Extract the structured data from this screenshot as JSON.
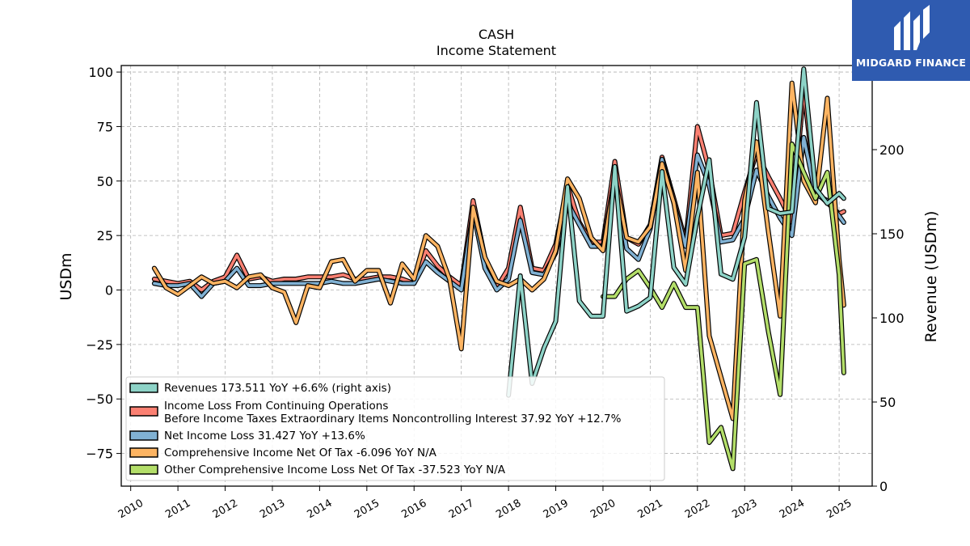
{
  "brand": {
    "name": "MIDGARD FINANCE",
    "color": "#2f5bb0"
  },
  "chart_data": {
    "type": "line",
    "title": "CASH",
    "subtitle": "Income Statement",
    "ylabel": "USDm",
    "ylabel_right": "Revenue (USDm)",
    "ylim": [
      -90,
      103
    ],
    "ylim_right": [
      0,
      250
    ],
    "xlim": [
      2009.8,
      2025.7
    ],
    "yticks": [
      -75,
      -50,
      -25,
      0,
      25,
      50,
      75,
      100
    ],
    "yticks_right": [
      0,
      50,
      100,
      150,
      200,
      250
    ],
    "xticks": [
      2010,
      2011,
      2012,
      2013,
      2014,
      2015,
      2016,
      2017,
      2018,
      2019,
      2020,
      2021,
      2022,
      2023,
      2024,
      2025
    ],
    "grid": true,
    "legend_position": "lower-left",
    "series": [
      {
        "name": "Revenues  173.511 YoY +6.6% (right axis)",
        "color": "#8dd3c7",
        "axis": "right",
        "x": [
          2018.0,
          2018.25,
          2018.5,
          2018.75,
          2019.0,
          2019.25,
          2019.5,
          2019.75,
          2020.0,
          2020.25,
          2020.5,
          2020.75,
          2021.0,
          2021.25,
          2021.5,
          2021.75,
          2022.0,
          2022.25,
          2022.5,
          2022.75,
          2023.0,
          2023.25,
          2023.5,
          2023.75,
          2024.0,
          2024.25,
          2024.5,
          2024.75,
          2025.0,
          2025.1
        ],
        "y": [
          54,
          125,
          61,
          82,
          98,
          178,
          110,
          101,
          101,
          190,
          104,
          107,
          112,
          187,
          130,
          120,
          160,
          194,
          126,
          123,
          148,
          228,
          165,
          162,
          163,
          248,
          177,
          168,
          174,
          171
        ]
      },
      {
        "name": "Income Loss From Continuing Operations\nBefore Income Taxes Extraordinary Items Noncontrolling Interest  37.92 YoY +12.7%",
        "color": "#fb8072",
        "axis": "left",
        "x": [
          2010.5,
          2010.75,
          2011.0,
          2011.25,
          2011.5,
          2011.75,
          2012.0,
          2012.25,
          2012.5,
          2012.75,
          2013.0,
          2013.25,
          2013.5,
          2013.75,
          2014.0,
          2014.25,
          2014.5,
          2014.75,
          2015.0,
          2015.25,
          2015.5,
          2015.75,
          2016.0,
          2016.25,
          2016.5,
          2016.75,
          2017.0,
          2017.25,
          2017.5,
          2017.75,
          2018.0,
          2018.25,
          2018.5,
          2018.75,
          2019.0,
          2019.25,
          2019.5,
          2019.75,
          2020.0,
          2020.25,
          2020.5,
          2020.75,
          2021.0,
          2021.25,
          2021.5,
          2021.75,
          2022.0,
          2022.25,
          2022.5,
          2022.75,
          2023.0,
          2023.25,
          2023.5,
          2023.75,
          2024.0,
          2024.25,
          2024.5,
          2024.75,
          2025.0,
          2025.1
        ],
        "y": [
          5,
          4,
          3,
          4,
          0,
          4,
          6,
          16,
          5,
          6,
          4,
          5,
          5,
          6,
          6,
          6,
          7,
          5,
          5,
          6,
          6,
          5,
          3,
          18,
          11,
          6,
          2,
          41,
          15,
          1,
          10,
          38,
          10,
          9,
          21,
          48,
          31,
          22,
          22,
          59,
          24,
          21,
          30,
          61,
          42,
          22,
          75,
          55,
          25,
          26,
          45,
          63,
          52,
          42,
          31,
          92,
          45,
          40,
          35,
          36
        ]
      },
      {
        "name": "Net Income Loss  31.427 YoY +13.6%",
        "color": "#80b1d3",
        "axis": "left",
        "x": [
          2010.5,
          2010.75,
          2011.0,
          2011.25,
          2011.5,
          2011.75,
          2012.0,
          2012.25,
          2012.5,
          2012.75,
          2013.0,
          2013.25,
          2013.5,
          2013.75,
          2014.0,
          2014.25,
          2014.5,
          2014.75,
          2015.0,
          2015.25,
          2015.5,
          2015.75,
          2016.0,
          2016.25,
          2016.5,
          2016.75,
          2017.0,
          2017.25,
          2017.5,
          2017.75,
          2018.0,
          2018.25,
          2018.5,
          2018.75,
          2019.0,
          2019.25,
          2019.5,
          2019.75,
          2020.0,
          2020.25,
          2020.5,
          2020.75,
          2021.0,
          2021.25,
          2021.5,
          2021.75,
          2022.0,
          2022.25,
          2022.5,
          2022.75,
          2023.0,
          2023.25,
          2023.5,
          2023.75,
          2024.0,
          2024.25,
          2024.5,
          2024.75,
          2025.0,
          2025.1
        ],
        "y": [
          3,
          2,
          2,
          3,
          -3,
          3,
          4,
          10,
          2,
          2,
          3,
          3,
          3,
          3,
          3,
          4,
          3,
          3,
          4,
          5,
          4,
          3,
          3,
          13,
          8,
          4,
          0,
          36,
          10,
          0,
          5,
          32,
          8,
          7,
          17,
          40,
          30,
          20,
          20,
          52,
          19,
          14,
          28,
          60,
          40,
          20,
          62,
          48,
          22,
          23,
          33,
          55,
          43,
          33,
          25,
          70,
          44,
          41,
          34,
          31
        ]
      },
      {
        "name": "Comprehensive Income Net Of Tax  -6.096 YoY N/A",
        "color": "#fdb462",
        "axis": "left",
        "x": [
          2010.5,
          2010.75,
          2011.0,
          2011.25,
          2011.5,
          2011.75,
          2012.0,
          2012.25,
          2012.5,
          2012.75,
          2013.0,
          2013.25,
          2013.5,
          2013.75,
          2014.0,
          2014.25,
          2014.5,
          2014.75,
          2015.0,
          2015.25,
          2015.5,
          2015.75,
          2016.0,
          2016.25,
          2016.5,
          2016.75,
          2017.0,
          2017.25,
          2017.5,
          2017.75,
          2018.0,
          2018.25,
          2018.5,
          2018.75,
          2019.0,
          2019.25,
          2019.5,
          2019.75,
          2020.0,
          2020.25,
          2020.5,
          2020.75,
          2021.0,
          2021.25,
          2021.5,
          2021.75,
          2022.0,
          2022.25,
          2022.5,
          2022.75,
          2023.0,
          2023.25,
          2023.5,
          2023.75,
          2024.0,
          2024.25,
          2024.5,
          2024.75,
          2025.0,
          2025.1
        ],
        "y": [
          10,
          1,
          -2,
          2,
          6,
          3,
          4,
          1,
          6,
          7,
          1,
          -1,
          -15,
          2,
          1,
          13,
          14,
          4,
          9,
          9,
          -6,
          12,
          5,
          25,
          20,
          5,
          -27,
          38,
          15,
          4,
          2,
          5,
          0,
          5,
          18,
          51,
          42,
          24,
          18,
          52,
          24,
          22,
          29,
          58,
          40,
          9,
          54,
          -21,
          -40,
          -59,
          41,
          68,
          27,
          -12,
          95,
          50,
          40,
          88,
          14,
          -7
        ]
      },
      {
        "name": "Other Comprehensive Income Loss Net Of Tax  -37.523 YoY N/A",
        "color": "#b3de69",
        "axis": "left",
        "x": [
          2020.0,
          2020.25,
          2020.5,
          2020.75,
          2021.0,
          2021.25,
          2021.5,
          2021.75,
          2022.0,
          2022.25,
          2022.5,
          2022.75,
          2023.0,
          2023.25,
          2023.5,
          2023.75,
          2024.0,
          2024.25,
          2024.5,
          2024.75,
          2025.0,
          2025.1
        ],
        "y": [
          -3,
          -3,
          5,
          9,
          1,
          -8,
          3,
          -8,
          -8,
          -70,
          -63,
          -82,
          12,
          14,
          -19,
          -48,
          67,
          54,
          42,
          54,
          7,
          -38
        ]
      }
    ]
  }
}
